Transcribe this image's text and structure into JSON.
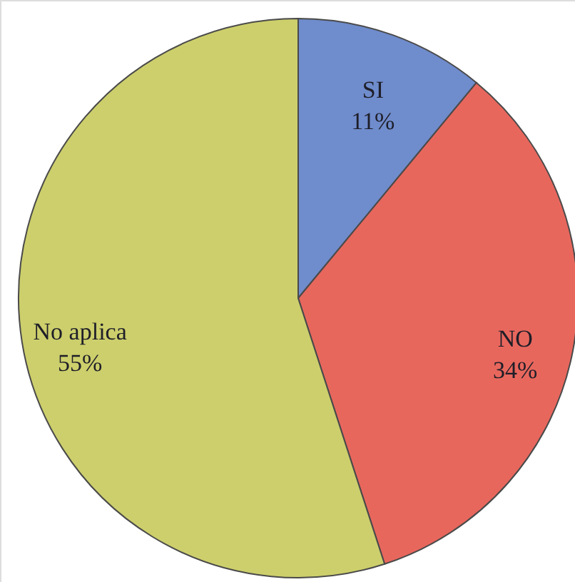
{
  "chart_data": {
    "type": "pie",
    "categories": [
      "SI",
      "NO",
      "No aplica"
    ],
    "values": [
      11,
      34,
      55
    ],
    "colors": [
      "#6f8ccc",
      "#e8675d",
      "#cdcf6c"
    ],
    "value_labels": [
      "11%",
      "34%",
      "55%"
    ]
  }
}
